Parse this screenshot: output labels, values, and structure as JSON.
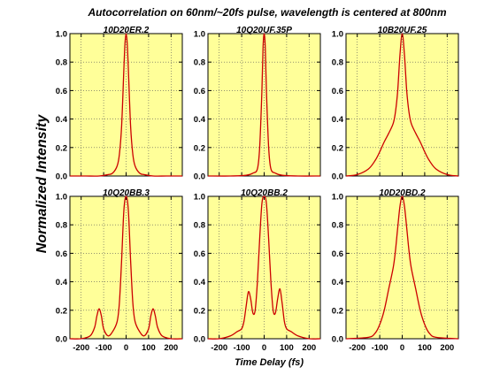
{
  "figure": {
    "title": "Autocorrelation on 60nm/~20fs pulse, wavelength is centered at 800nm",
    "ylabel": "Normalized Intensity",
    "xlabel": "Time Delay (fs)",
    "plot_bg": "#ffff99",
    "line_color": "#cc0000",
    "grid": "dotted",
    "x_ticks": [
      -200,
      -100,
      0,
      100,
      200
    ],
    "y_ticks": [
      0.0,
      0.2,
      0.4,
      0.6,
      0.8,
      1.0
    ]
  },
  "chart_data": [
    {
      "type": "line",
      "title": "10D20ER.2",
      "xlim": [
        -250,
        250
      ],
      "ylim": [
        0,
        1
      ],
      "series": [
        {
          "x": [
            -250,
            -180,
            -120,
            -80,
            -60,
            -40,
            -30,
            -20,
            -10,
            -5,
            0,
            5,
            10,
            20,
            30,
            40,
            60,
            80,
            120,
            180,
            250
          ],
          "y": [
            0,
            0,
            0,
            0.01,
            0.02,
            0.07,
            0.15,
            0.35,
            0.75,
            0.93,
            1.0,
            0.93,
            0.75,
            0.35,
            0.15,
            0.07,
            0.02,
            0.01,
            0,
            0,
            0
          ]
        }
      ]
    },
    {
      "type": "line",
      "title": "10Q20UF.35P",
      "xlim": [
        -250,
        250
      ],
      "ylim": [
        0,
        1
      ],
      "series": [
        {
          "x": [
            -250,
            -150,
            -80,
            -50,
            -30,
            -20,
            -10,
            -5,
            0,
            5,
            10,
            20,
            30,
            50,
            80,
            150,
            250
          ],
          "y": [
            0,
            0,
            0.005,
            0.02,
            0.05,
            0.2,
            0.6,
            0.9,
            1.0,
            0.9,
            0.6,
            0.2,
            0.05,
            0.02,
            0.005,
            0,
            0
          ]
        }
      ]
    },
    {
      "type": "line",
      "title": "10B20UF.25",
      "xlim": [
        -250,
        250
      ],
      "ylim": [
        0,
        1
      ],
      "series": [
        {
          "x": [
            -250,
            -200,
            -150,
            -120,
            -100,
            -80,
            -60,
            -40,
            -30,
            -20,
            -10,
            0,
            10,
            20,
            30,
            40,
            60,
            80,
            100,
            120,
            150,
            200,
            250
          ],
          "y": [
            0,
            0.01,
            0.05,
            0.11,
            0.17,
            0.24,
            0.3,
            0.37,
            0.45,
            0.6,
            0.85,
            1.0,
            0.85,
            0.6,
            0.45,
            0.37,
            0.3,
            0.24,
            0.17,
            0.11,
            0.05,
            0.01,
            0
          ]
        }
      ]
    },
    {
      "type": "line",
      "title": "10Q20BB.3",
      "xlim": [
        -250,
        250
      ],
      "ylim": [
        0,
        1
      ],
      "series": [
        {
          "x": [
            -250,
            -200,
            -160,
            -140,
            -130,
            -120,
            -110,
            -100,
            -80,
            -60,
            -40,
            -30,
            -20,
            -10,
            0,
            10,
            20,
            30,
            40,
            60,
            80,
            100,
            110,
            120,
            130,
            140,
            160,
            200,
            250
          ],
          "y": [
            0,
            0,
            0.02,
            0.08,
            0.16,
            0.21,
            0.16,
            0.07,
            0.02,
            0.05,
            0.12,
            0.25,
            0.55,
            0.9,
            1.0,
            0.9,
            0.55,
            0.25,
            0.12,
            0.05,
            0.02,
            0.07,
            0.16,
            0.21,
            0.16,
            0.08,
            0.02,
            0,
            0
          ]
        }
      ]
    },
    {
      "type": "line",
      "title": "10Q20BB.2",
      "xlim": [
        -250,
        250
      ],
      "ylim": [
        0,
        1
      ],
      "series": [
        {
          "x": [
            -250,
            -200,
            -150,
            -120,
            -100,
            -90,
            -80,
            -70,
            -60,
            -50,
            -40,
            -30,
            -20,
            -10,
            0,
            10,
            20,
            30,
            40,
            50,
            60,
            70,
            80,
            90,
            100,
            120,
            150,
            200,
            250
          ],
          "y": [
            0,
            0,
            0.02,
            0.05,
            0.07,
            0.12,
            0.23,
            0.33,
            0.28,
            0.18,
            0.2,
            0.4,
            0.7,
            0.95,
            1.0,
            0.95,
            0.7,
            0.4,
            0.2,
            0.18,
            0.28,
            0.35,
            0.25,
            0.12,
            0.07,
            0.05,
            0.02,
            0,
            0
          ]
        }
      ]
    },
    {
      "type": "line",
      "title": "10D20BD.2",
      "xlim": [
        -250,
        250
      ],
      "ylim": [
        0,
        1
      ],
      "series": [
        {
          "x": [
            -250,
            -150,
            -120,
            -100,
            -80,
            -60,
            -40,
            -30,
            -20,
            -10,
            0,
            10,
            20,
            30,
            40,
            60,
            80,
            100,
            120,
            150,
            250
          ],
          "y": [
            0,
            0.01,
            0.04,
            0.1,
            0.2,
            0.35,
            0.5,
            0.62,
            0.78,
            0.93,
            1.0,
            0.93,
            0.78,
            0.62,
            0.5,
            0.35,
            0.2,
            0.1,
            0.04,
            0.01,
            0
          ]
        }
      ]
    }
  ]
}
